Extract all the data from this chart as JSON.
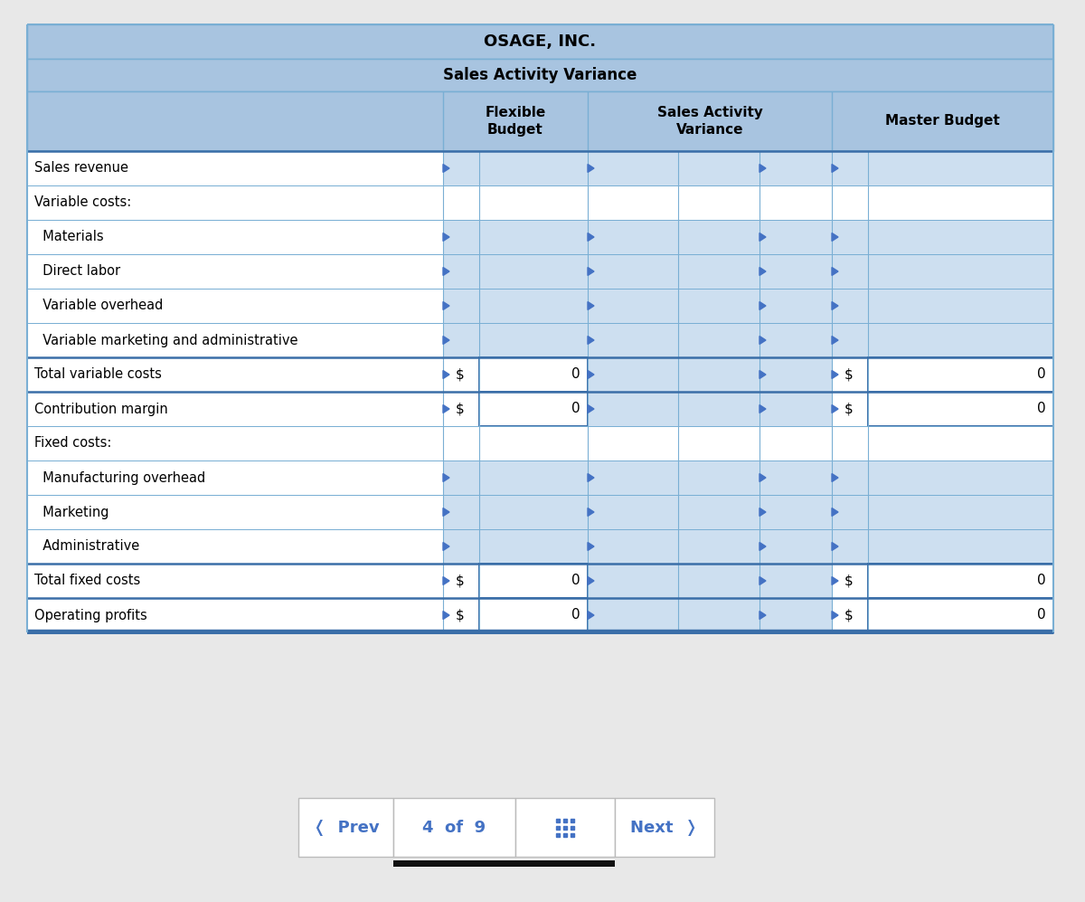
{
  "title1": "OSAGE, INC.",
  "title2": "Sales Activity Variance",
  "rows": [
    {
      "label": "Sales revenue",
      "indent": 0,
      "type": "normal",
      "flex_val": null,
      "master_val": null
    },
    {
      "label": "Variable costs:",
      "indent": 0,
      "type": "label",
      "flex_val": null,
      "master_val": null
    },
    {
      "label": "  Materials",
      "indent": 1,
      "type": "normal",
      "flex_val": null,
      "master_val": null
    },
    {
      "label": "  Direct labor",
      "indent": 1,
      "type": "normal",
      "flex_val": null,
      "master_val": null
    },
    {
      "label": "  Variable overhead",
      "indent": 1,
      "type": "normal",
      "flex_val": null,
      "master_val": null
    },
    {
      "label": "  Variable marketing and administrative",
      "indent": 1,
      "type": "normal",
      "flex_val": null,
      "master_val": null
    },
    {
      "label": "Total variable costs",
      "indent": 0,
      "type": "total",
      "flex_val": "0",
      "master_val": "0"
    },
    {
      "label": "Contribution margin",
      "indent": 0,
      "type": "total",
      "flex_val": "0",
      "master_val": "0"
    },
    {
      "label": "Fixed costs:",
      "indent": 0,
      "type": "label",
      "flex_val": null,
      "master_val": null
    },
    {
      "label": "  Manufacturing overhead",
      "indent": 1,
      "type": "normal",
      "flex_val": null,
      "master_val": null
    },
    {
      "label": "  Marketing",
      "indent": 1,
      "type": "normal",
      "flex_val": null,
      "master_val": null
    },
    {
      "label": "  Administrative",
      "indent": 1,
      "type": "normal",
      "flex_val": null,
      "master_val": null
    },
    {
      "label": "Total fixed costs",
      "indent": 0,
      "type": "total",
      "flex_val": "0",
      "master_val": "0"
    },
    {
      "label": "Operating profits",
      "indent": 0,
      "type": "total",
      "flex_val": "0",
      "master_val": "0"
    }
  ],
  "header_bg": "#a8c4e0",
  "white_bg": "#ffffff",
  "input_bg": "#cddff0",
  "border_col": "#7aafd4",
  "dark_border": "#3a6ea8",
  "text_color": "#000000",
  "arrow_color": "#4472c4",
  "fig_bg": "#e8e8e8",
  "nav_bg": "#ffffff",
  "nav_border": "#bbbbbb",
  "nav_text_color": "#4472c4",
  "page_text": "4 of 9"
}
